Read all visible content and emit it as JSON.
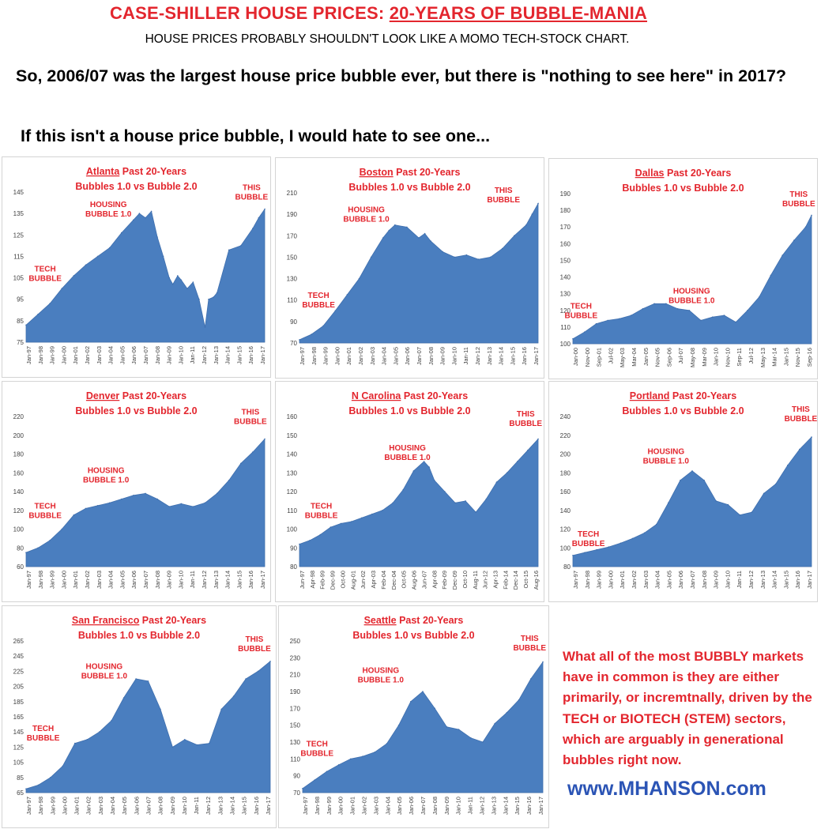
{
  "header": {
    "title_prefix": "CASE-SHILLER HOUSE PRICES:  ",
    "title_underlined": "20-YEARS OF BUBBLE-MANIA",
    "subtitle": "HOUSE PRICES PROBABLY SHOULDN'T LOOK LIKE A MOMO TECH-STOCK CHART.",
    "question": "So, 2006/07 was the largest house price bubble ever, but there is \"nothing to see here\" in 2017?",
    "statement": "If this isn't a house price bubble, I would hate to see one..."
  },
  "note": "What all of the most BUBBLY markets have in common is they are either primarily, or incremtnally, driven by the TECH or BIOTECH (STEM) sectors, which are arguably in generational bubbles right now.",
  "website": "www.MHANSON.com",
  "colors": {
    "red": "#e3262e",
    "area": "#4a7ebf",
    "link": "#2b54b5"
  },
  "chart_data": [
    {
      "type": "area",
      "city": "Atlanta",
      "title_rest": " Past 20-Years",
      "subtitle": "Bubbles 1.0 vs Bubble 2.0",
      "ylim": [
        75,
        145
      ],
      "yticks": [
        75,
        85,
        95,
        105,
        115,
        125,
        135,
        145
      ],
      "xticks": [
        "Jan-97",
        "Jan-98",
        "Jan-99",
        "Jan-00",
        "Jan-01",
        "Jan-02",
        "Jan-03",
        "Jan-04",
        "Jan-05",
        "Jan-06",
        "Jan-07",
        "Jan-08",
        "Jan-09",
        "Jan-10",
        "Jan-11",
        "Jan-12",
        "Jan-13",
        "Jan-14",
        "Jan-15",
        "Jan-16",
        "Jan-17"
      ],
      "x": [
        0,
        1,
        2,
        3,
        4,
        5,
        6,
        7,
        8,
        9,
        9.5,
        10,
        10.5,
        11,
        11.5,
        12,
        12.3,
        12.7,
        13,
        13.5,
        14,
        14.5,
        15,
        15.3,
        15.7,
        16,
        17,
        18,
        19,
        19.5,
        20
      ],
      "y": [
        83,
        88,
        93,
        100,
        106,
        111,
        115,
        119,
        126,
        132,
        135,
        133,
        136,
        124,
        115,
        105,
        102,
        106,
        104,
        100,
        103,
        95,
        82,
        95,
        96,
        98,
        118,
        120,
        128,
        133,
        137
      ],
      "annotations": [
        {
          "lines": [
            "HOUSING",
            "BUBBLE 1.0"
          ],
          "x": 6.9,
          "y": 138
        },
        {
          "lines": [
            "TECH",
            "BUBBLE"
          ],
          "x": 1.6,
          "y": 108
        },
        {
          "lines": [
            "THIS",
            "BUBBLE"
          ],
          "x": 18.9,
          "y": 146
        }
      ]
    },
    {
      "type": "area",
      "city": "Boston",
      "title_rest": " Past 20-Years",
      "subtitle": "Bubbles 1.0 vs Bubble 2.0",
      "ylim": [
        70,
        210
      ],
      "yticks": [
        70,
        90,
        110,
        130,
        150,
        170,
        190,
        210
      ],
      "xticks": [
        "Jan-97",
        "Jan-98",
        "Jan-99",
        "Jan-00",
        "Jan-01",
        "Jan-02",
        "Jan-03",
        "Jan-04",
        "Jan-05",
        "Jan-06",
        "Jan-07",
        "Jan-08",
        "Jan-09",
        "Jan-10",
        "Jan-11",
        "Jan-12",
        "Jan-13",
        "Jan-14",
        "Jan-15",
        "Jan-16",
        "Jan-17"
      ],
      "x": [
        0,
        1,
        2,
        3,
        4,
        5,
        6,
        7,
        7.5,
        8,
        9,
        10,
        10.5,
        11,
        12,
        13,
        14,
        15,
        16,
        17,
        18,
        19,
        19.5,
        20
      ],
      "y": [
        73,
        78,
        86,
        100,
        115,
        130,
        150,
        168,
        175,
        180,
        178,
        168,
        172,
        165,
        155,
        150,
        152,
        148,
        150,
        158,
        170,
        180,
        190,
        200
      ],
      "annotations": [
        {
          "lines": [
            "HOUSING",
            "BUBBLE 1.0"
          ],
          "x": 5.6,
          "y": 192
        },
        {
          "lines": [
            "TECH",
            "BUBBLE"
          ],
          "x": 1.6,
          "y": 112
        },
        {
          "lines": [
            "THIS",
            "BUBBLE"
          ],
          "x": 17.1,
          "y": 210
        }
      ]
    },
    {
      "type": "area",
      "city": "Dallas",
      "title_rest": " Past 20-Years",
      "subtitle": "Bubbles 1.0 vs Bubble 2.0",
      "ylim": [
        100,
        190
      ],
      "yticks": [
        100,
        110,
        120,
        130,
        140,
        150,
        160,
        170,
        180,
        190
      ],
      "xticks": [
        "Jan-00",
        "Nov-00",
        "Sep-01",
        "Jul-02",
        "May-03",
        "Mar-04",
        "Jan-05",
        "Nov-05",
        "Sep-06",
        "Jul-07",
        "May-08",
        "Mar-09",
        "Jan-10",
        "Nov-10",
        "Sep-11",
        "Jul-12",
        "May-13",
        "Mar-14",
        "Jan-15",
        "Nov-15",
        "Sep-16"
      ],
      "x": [
        0,
        1,
        2,
        3,
        4,
        5,
        6,
        7,
        8,
        9,
        10,
        11,
        12,
        13,
        14,
        15,
        16,
        17,
        18,
        19,
        20,
        20.5
      ],
      "y": [
        103,
        107,
        112,
        114,
        115,
        117,
        121,
        124,
        124,
        121,
        120,
        114,
        116,
        117,
        113,
        120,
        128,
        141,
        153,
        162,
        170,
        177
      ],
      "annotations": [
        {
          "lines": [
            "HOUSING",
            "BUBBLE 1.0"
          ],
          "x": 10.2,
          "y": 130
        },
        {
          "lines": [
            "TECH",
            "BUBBLE"
          ],
          "x": 0.7,
          "y": 121
        },
        {
          "lines": [
            "THIS",
            "BUBBLE"
          ],
          "x": 19.4,
          "y": 188
        }
      ]
    },
    {
      "type": "area",
      "city": "Denver",
      "title_rest": " Past 20-Years",
      "subtitle": "Bubbles 1.0 vs Bubble 2.0",
      "ylim": [
        60,
        220
      ],
      "yticks": [
        60,
        80,
        100,
        120,
        140,
        160,
        180,
        200,
        220
      ],
      "xticks": [
        "Jan-97",
        "Jan-98",
        "Jan-99",
        "Jan-00",
        "Jan-01",
        "Jan-02",
        "Jan-03",
        "Jan-04",
        "Jan-05",
        "Jan-06",
        "Jan-07",
        "Jan-08",
        "Jan-09",
        "Jan-10",
        "Jan-11",
        "Jan-12",
        "Jan-13",
        "Jan-14",
        "Jan-15",
        "Jan-16",
        "Jan-17"
      ],
      "x": [
        0,
        1,
        2,
        3,
        4,
        5,
        6,
        7,
        8,
        9,
        10,
        11,
        12,
        13,
        14,
        15,
        16,
        17,
        18,
        19,
        20
      ],
      "y": [
        75,
        80,
        88,
        100,
        115,
        122,
        125,
        128,
        132,
        136,
        138,
        132,
        124,
        127,
        124,
        128,
        138,
        152,
        170,
        182,
        196
      ],
      "annotations": [
        {
          "lines": [
            "HOUSING",
            "BUBBLE 1.0"
          ],
          "x": 6.7,
          "y": 160
        },
        {
          "lines": [
            "TECH",
            "BUBBLE"
          ],
          "x": 1.6,
          "y": 122
        },
        {
          "lines": [
            "THIS",
            "BUBBLE"
          ],
          "x": 18.8,
          "y": 222
        }
      ]
    },
    {
      "type": "area",
      "city": "N Carolina",
      "title_rest": " Past 20-Years",
      "subtitle": "Bubbles 1.0 vs Bubble 2.0",
      "ylim": [
        80,
        160
      ],
      "yticks": [
        80,
        90,
        100,
        110,
        120,
        130,
        140,
        150,
        160
      ],
      "xticks": [
        "Jun-97",
        "Apr-98",
        "Feb-99",
        "Dec-99",
        "Oct-00",
        "Aug-01",
        "Jun-02",
        "Apr-03",
        "Feb-04",
        "Dec-04",
        "Oct-05",
        "Aug-06",
        "Jun-07",
        "Apr-08",
        "Feb-09",
        "Dec-09",
        "Oct-10",
        "Aug-11",
        "Jun-12",
        "Apr-13",
        "Feb-14",
        "Dec-14",
        "Oct-15",
        "Aug-16"
      ],
      "x": [
        0,
        1,
        2,
        3,
        4,
        5,
        6,
        7,
        8,
        9,
        10,
        11,
        12,
        12.5,
        13,
        14,
        15,
        16,
        17,
        18,
        19,
        20,
        21,
        22,
        23
      ],
      "y": [
        92,
        94,
        97,
        101,
        103,
        104,
        106,
        108,
        110,
        114,
        121,
        131,
        136,
        133,
        126,
        120,
        114,
        115,
        109,
        116,
        125,
        130,
        136,
        142,
        148
      ],
      "annotations": [
        {
          "lines": [
            "HOUSING",
            "BUBBLE 1.0"
          ],
          "x": 10.4,
          "y": 142
        },
        {
          "lines": [
            "TECH",
            "BUBBLE"
          ],
          "x": 2.1,
          "y": 111
        },
        {
          "lines": [
            "THIS",
            "BUBBLE"
          ],
          "x": 21.8,
          "y": 160
        }
      ]
    },
    {
      "type": "area",
      "city": "Portland",
      "title_rest": " Past 20-Years",
      "subtitle": "Bubbles 1.0 vs Bubble 2.0",
      "ylim": [
        80,
        240
      ],
      "yticks": [
        80,
        100,
        120,
        140,
        160,
        180,
        200,
        220,
        240
      ],
      "xticks": [
        "Jan-97",
        "Jan-98",
        "Jan-99",
        "Jan-00",
        "Jan-01",
        "Jan-02",
        "Jan-03",
        "Jan-04",
        "Jan-05",
        "Jan-06",
        "Jan-07",
        "Jan-08",
        "Jan-09",
        "Jan-10",
        "Jan-11",
        "Jan-12",
        "Jan-13",
        "Jan-14",
        "Jan-15",
        "Jan-16",
        "Jan-17"
      ],
      "x": [
        0,
        1,
        2,
        3,
        4,
        5,
        6,
        7,
        8,
        9,
        10,
        11,
        12,
        13,
        14,
        15,
        16,
        17,
        18,
        19,
        20
      ],
      "y": [
        92,
        95,
        98,
        101,
        105,
        110,
        116,
        125,
        148,
        172,
        182,
        172,
        150,
        146,
        135,
        138,
        158,
        168,
        188,
        205,
        218
      ],
      "annotations": [
        {
          "lines": [
            "HOUSING",
            "BUBBLE 1.0"
          ],
          "x": 7.8,
          "y": 200
        },
        {
          "lines": [
            "TECH",
            "BUBBLE"
          ],
          "x": 1.3,
          "y": 112
        },
        {
          "lines": [
            "THIS",
            "BUBBLE"
          ],
          "x": 19.1,
          "y": 245
        }
      ]
    },
    {
      "type": "area",
      "city": "San Francisco",
      "title_rest": " Past 20-Years",
      "subtitle": "Bubbles 1.0 vs Bubble 2.0",
      "ylim": [
        65,
        265
      ],
      "yticks": [
        65,
        85,
        105,
        125,
        145,
        165,
        185,
        205,
        225,
        245,
        265
      ],
      "xticks": [
        "Jan-97",
        "Jan-98",
        "Jan-99",
        "Jan-00",
        "Jan-01",
        "Jan-02",
        "Jan-03",
        "Jan-04",
        "Jan-05",
        "Jan-06",
        "Jan-07",
        "Jan-08",
        "Jan-09",
        "Jan-10",
        "Jan-11",
        "Jan-12",
        "Jan-13",
        "Jan-14",
        "Jan-15",
        "Jan-16",
        "Jan-17"
      ],
      "x": [
        0,
        1,
        2,
        3,
        4,
        5,
        6,
        7,
        8,
        9,
        10,
        11,
        12,
        13,
        14,
        15,
        16,
        17,
        18,
        19,
        20
      ],
      "y": [
        70,
        75,
        85,
        100,
        130,
        135,
        145,
        160,
        190,
        215,
        212,
        175,
        125,
        135,
        128,
        130,
        175,
        192,
        215,
        225,
        238
      ],
      "annotations": [
        {
          "lines": [
            "HOUSING",
            "BUBBLE 1.0"
          ],
          "x": 6.4,
          "y": 228
        },
        {
          "lines": [
            "TECH",
            "BUBBLE"
          ],
          "x": 1.4,
          "y": 146
        },
        {
          "lines": [
            "THIS",
            "BUBBLE"
          ],
          "x": 18.7,
          "y": 264
        }
      ]
    },
    {
      "type": "area",
      "city": "Seattle",
      "title_rest": " Past 20-Years",
      "subtitle": "Bubbles 1.0 vs Bubble 2.0",
      "ylim": [
        70,
        250
      ],
      "yticks": [
        70,
        90,
        110,
        130,
        150,
        170,
        190,
        210,
        230,
        250
      ],
      "xticks": [
        "Jan-97",
        "Jan-98",
        "Jan-99",
        "Jan-00",
        "Jan-01",
        "Jan-02",
        "Jan-03",
        "Jan-04",
        "Jan-05",
        "Jan-06",
        "Jan-07",
        "Jan-08",
        "Jan-09",
        "Jan-10",
        "Jan-11",
        "Jan-12",
        "Jan-13",
        "Jan-14",
        "Jan-15",
        "Jan-16",
        "Jan-17"
      ],
      "x": [
        0,
        1,
        2,
        3,
        4,
        5,
        6,
        7,
        8,
        9,
        10,
        11,
        12,
        13,
        14,
        15,
        16,
        17,
        18,
        19,
        20
      ],
      "y": [
        75,
        85,
        95,
        103,
        110,
        113,
        118,
        128,
        150,
        178,
        190,
        170,
        148,
        145,
        135,
        130,
        152,
        165,
        180,
        205,
        225
      ],
      "annotations": [
        {
          "lines": [
            "HOUSING",
            "BUBBLE 1.0"
          ],
          "x": 6.5,
          "y": 212
        },
        {
          "lines": [
            "TECH",
            "BUBBLE"
          ],
          "x": 1.2,
          "y": 125
        },
        {
          "lines": [
            "THIS",
            "BUBBLE"
          ],
          "x": 18.9,
          "y": 250
        }
      ]
    }
  ]
}
